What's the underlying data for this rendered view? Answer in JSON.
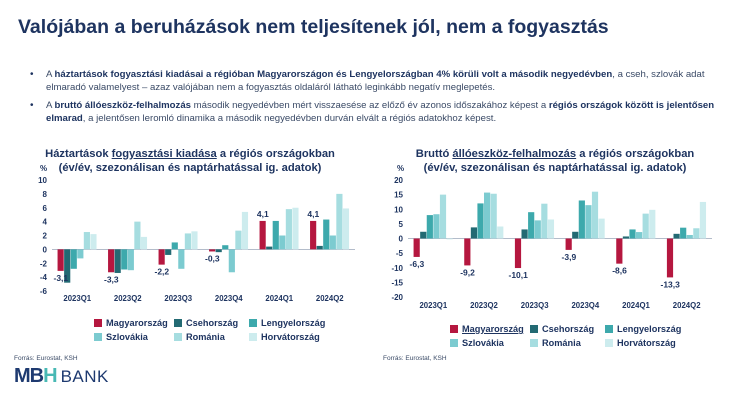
{
  "title": "Valójában a beruházások nem teljesítenek jól, nem a fogyasztás",
  "bullets": [
    {
      "pre": "A ",
      "bold1": "háztartások fogyasztási kiadásai a régióban Magyarországon és Lengyelországban 4% körüli volt a második negyedévben",
      "post": ", a cseh, szlovák adat elmaradó valamelyest – azaz valójában nem a fogyasztás oldaláról látható leginkább negatív meglepetés."
    },
    {
      "pre": "A ",
      "bold1": "bruttó állóeszköz-felhalmozás",
      "mid": " második negyedévben mért visszaesése az előző év azonos időszakához képest a ",
      "bold2": "régiós országok között is jelentősen elmarad",
      "post": ", a jelentősen leromló dinamika a második negyedévben durván elvált a régiós adatokhoz képest."
    }
  ],
  "legend": [
    {
      "name": "Magyarország",
      "color": "#b5173f"
    },
    {
      "name": "Csehország",
      "color": "#236a73"
    },
    {
      "name": "Lengyelország",
      "color": "#3da9ac"
    },
    {
      "name": "Szlovákia",
      "color": "#7ccbd0"
    },
    {
      "name": "Románia",
      "color": "#a6dde0"
    },
    {
      "name": "Horvátország",
      "color": "#cdecee"
    }
  ],
  "chart_data": [
    {
      "type": "bar",
      "title_pre": "Háztartások ",
      "title_underlined": "fogyasztási kiadása",
      "title_post": " a régiós országokban",
      "subtitle": "(év/év,  szezonálisan és naptárhatással ig. adatok)",
      "ylabel": "%",
      "ylim": [
        -6,
        10
      ],
      "yticks": [
        "-6",
        "-4",
        "-2",
        "0",
        "2",
        "4",
        "6",
        "8",
        "10"
      ],
      "categories": [
        "2023Q1",
        "2023Q2",
        "2023Q3",
        "2023Q4",
        "2024Q1",
        "2024Q2"
      ],
      "series": [
        {
          "name": "Magyarország",
          "values": [
            -3.1,
            -3.3,
            -2.2,
            -0.3,
            4.1,
            4.1
          ]
        },
        {
          "name": "Csehország",
          "values": [
            -4.8,
            -3.4,
            -0.8,
            -0.4,
            0.4,
            0.5
          ]
        },
        {
          "name": "Lengyelország",
          "values": [
            -2.8,
            -2.9,
            1.0,
            0.6,
            4.1,
            4.3
          ]
        },
        {
          "name": "Szlovákia",
          "values": [
            -1.3,
            -3.0,
            -2.8,
            -3.3,
            2.0,
            2.0
          ]
        },
        {
          "name": "Románia",
          "values": [
            2.5,
            4.0,
            2.3,
            2.7,
            5.8,
            8.0
          ]
        },
        {
          "name": "Horvátország",
          "values": [
            2.2,
            1.8,
            2.6,
            5.4,
            6.0,
            5.9
          ]
        }
      ],
      "data_labels": [
        "-3,1",
        "-3,3",
        "-2,2",
        "-0,3",
        "4,1",
        "4,1"
      ],
      "source": "Forrás: Eurostat, KSH"
    },
    {
      "type": "bar",
      "title_pre": "Bruttó ",
      "title_underlined": "állóeszköz-felhalmozás",
      "title_post": " a régiós országokban",
      "subtitle": "(év/év,  szezonálisan és naptárhatással ig. adatok)",
      "ylabel": "%",
      "ylim": [
        -20,
        20
      ],
      "yticks": [
        "-20",
        "-15",
        "-10",
        "-5",
        "0",
        "5",
        "10",
        "15",
        "20"
      ],
      "categories": [
        "2023Q1",
        "2023Q2",
        "2023Q3",
        "2023Q4",
        "2024Q1",
        "2024Q2"
      ],
      "series": [
        {
          "name": "Magyarország",
          "values": [
            -6.3,
            -9.2,
            -10.1,
            -3.9,
            -8.6,
            -13.3
          ]
        },
        {
          "name": "Csehország",
          "values": [
            2.3,
            3.8,
            3.1,
            2.3,
            0.7,
            1.6
          ]
        },
        {
          "name": "Lengyelország",
          "values": [
            8.0,
            12.0,
            9.0,
            13.0,
            3.1,
            3.7
          ]
        },
        {
          "name": "Szlovákia",
          "values": [
            8.3,
            15.7,
            6.2,
            11.4,
            2.2,
            1.2
          ]
        },
        {
          "name": "Románia",
          "values": [
            15.0,
            15.3,
            11.9,
            16.0,
            8.5,
            3.5
          ]
        },
        {
          "name": "Horvátország",
          "values": [
            -0.3,
            4.1,
            6.5,
            6.8,
            9.8,
            12.5
          ]
        }
      ],
      "data_labels": [
        "-6,3",
        "-9,2",
        "-10,1",
        "-3,9",
        "-8,6",
        "-13,3"
      ],
      "source": "Forrás: Eurostat, KSH"
    }
  ],
  "logo": {
    "mark_a": "MB",
    "mark_b": "H",
    "text": "BANK"
  }
}
